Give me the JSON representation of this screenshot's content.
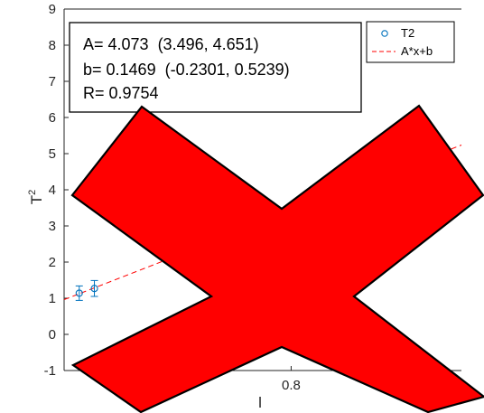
{
  "chart_data": {
    "type": "scatter",
    "title": "",
    "xlabel": "l",
    "ylabel": "T",
    "ylabel_sup": "2",
    "ylim": [
      -1,
      9
    ],
    "y_ticks": [
      "9",
      "8",
      "7",
      "6",
      "5",
      "4",
      "3",
      "2",
      "1",
      "0",
      "-1"
    ],
    "x_tick_labels": [
      "0.8"
    ],
    "grid": false,
    "legend": {
      "position": "top-right",
      "entries": [
        {
          "label": "T2",
          "marker": "circle",
          "color": "#0072BD"
        },
        {
          "label": "A*x+b",
          "line": "dashed",
          "color": "#FF0000"
        }
      ]
    },
    "annotation": {
      "lines": [
        "A= 4.073  (3.496, 4.651)",
        "b= 0.1469  (-0.2301, 0.5239)",
        "R= 0.9754"
      ]
    },
    "series": [
      {
        "name": "T2",
        "type": "scatter",
        "color": "#0072BD",
        "points": [
          {
            "x": 0.24,
            "y": 1.14,
            "err": 0.2
          },
          {
            "x": 0.28,
            "y": 1.27,
            "err": 0.22
          }
        ]
      },
      {
        "name": "A*x+b",
        "type": "line",
        "style": "dashed",
        "color": "#FF0000",
        "slope": 4.073,
        "intercept": 0.1469
      }
    ],
    "overlay": {
      "shape": "red-x",
      "color": "#FF0000"
    }
  }
}
